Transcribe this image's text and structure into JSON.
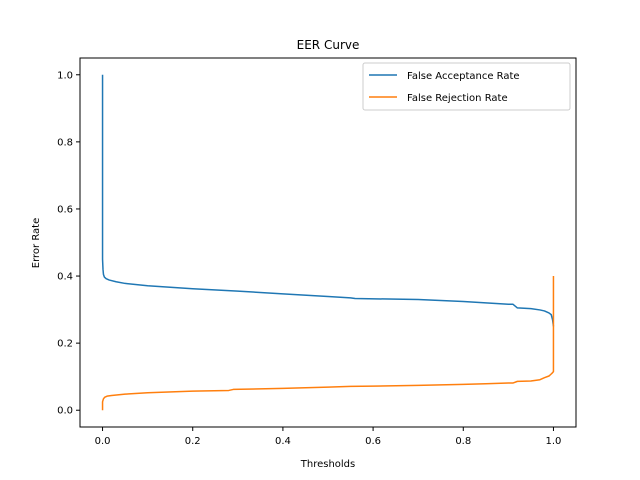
{
  "chart_data": {
    "type": "line",
    "title": "EER Curve",
    "xlabel": "Thresholds",
    "ylabel": "Error Rate",
    "xlim": [
      -0.05,
      1.05
    ],
    "ylim": [
      -0.05,
      1.05
    ],
    "xticks": [
      0.0,
      0.2,
      0.4,
      0.6,
      0.8,
      1.0
    ],
    "xtick_labels": [
      "0.0",
      "0.2",
      "0.4",
      "0.6",
      "0.8",
      "1.0"
    ],
    "yticks": [
      0.0,
      0.2,
      0.4,
      0.6,
      0.8,
      1.0
    ],
    "ytick_labels": [
      "0.0",
      "0.2",
      "0.4",
      "0.6",
      "0.8",
      "1.0"
    ],
    "grid": false,
    "legend_position": "top-right",
    "series": [
      {
        "name": "False Acceptance Rate",
        "color": "#1f77b4",
        "x": [
          0.0,
          0.0,
          0.001,
          0.002,
          0.004,
          0.008,
          0.015,
          0.03,
          0.05,
          0.1,
          0.2,
          0.3,
          0.4,
          0.5,
          0.55,
          0.56,
          0.7,
          0.8,
          0.85,
          0.9,
          0.91,
          0.92,
          0.95,
          0.97,
          0.98,
          0.99,
          0.995,
          0.998,
          1.0
        ],
        "y": [
          1.0,
          0.45,
          0.42,
          0.405,
          0.397,
          0.392,
          0.388,
          0.383,
          0.378,
          0.371,
          0.362,
          0.355,
          0.347,
          0.339,
          0.335,
          0.333,
          0.33,
          0.324,
          0.32,
          0.316,
          0.316,
          0.305,
          0.303,
          0.299,
          0.296,
          0.29,
          0.285,
          0.27,
          0.25
        ]
      },
      {
        "name": "False Rejection Rate",
        "color": "#ff7f0e",
        "x": [
          0.0,
          0.0,
          0.002,
          0.005,
          0.01,
          0.02,
          0.05,
          0.1,
          0.2,
          0.28,
          0.29,
          0.4,
          0.5,
          0.55,
          0.6,
          0.7,
          0.8,
          0.85,
          0.9,
          0.91,
          0.92,
          0.95,
          0.97,
          0.98,
          0.99,
          0.995,
          0.998,
          1.0,
          1.0
        ],
        "y": [
          0.0,
          0.025,
          0.034,
          0.039,
          0.042,
          0.044,
          0.048,
          0.052,
          0.057,
          0.059,
          0.062,
          0.065,
          0.069,
          0.071,
          0.072,
          0.074,
          0.077,
          0.079,
          0.081,
          0.081,
          0.086,
          0.087,
          0.091,
          0.097,
          0.102,
          0.108,
          0.112,
          0.115,
          0.4
        ]
      }
    ]
  }
}
